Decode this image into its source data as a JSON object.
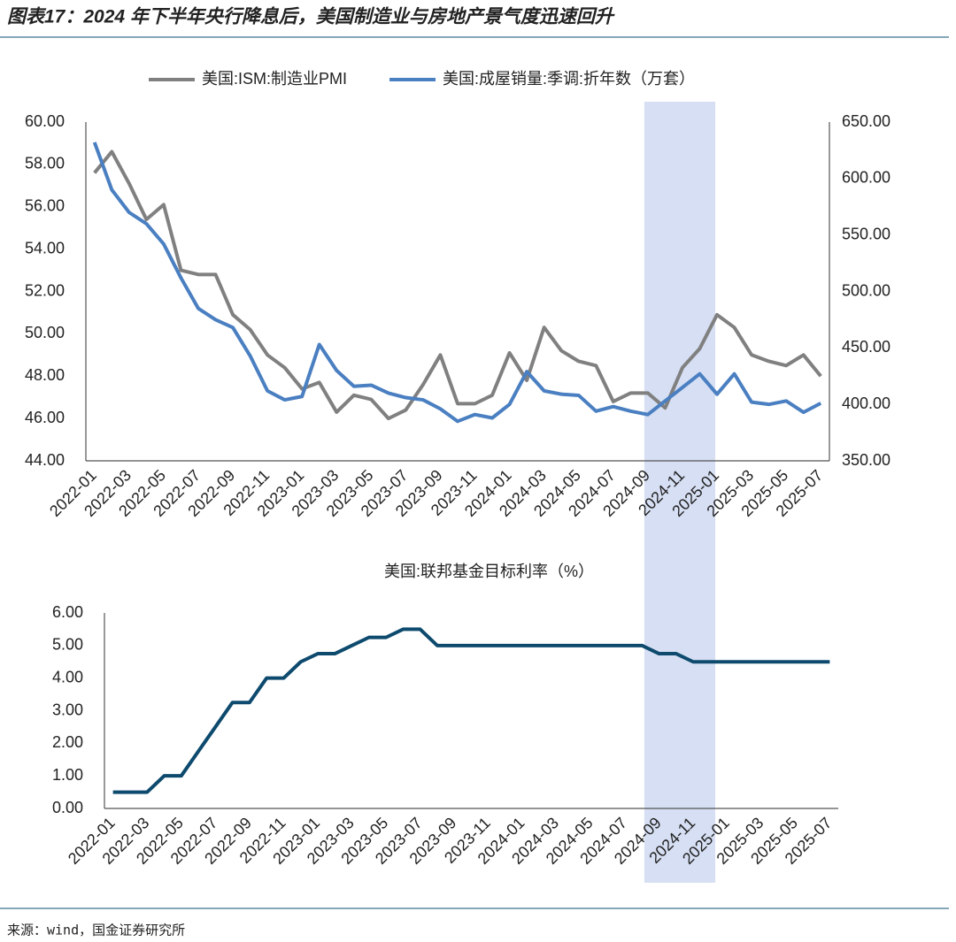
{
  "header": {
    "title": "图表17：2024 年下半年央行降息后，美国制造业与房地产景气度迅速回升"
  },
  "chart_data": [
    {
      "type": "line",
      "categories": [
        "2022-01",
        null,
        "2022-03",
        null,
        "2022-05",
        null,
        "2022-07",
        null,
        "2022-09",
        null,
        "2022-11",
        null,
        "2023-01",
        null,
        "2023-03",
        null,
        "2023-05",
        null,
        "2023-07",
        null,
        "2023-09",
        null,
        "2023-11",
        null,
        "2024-01",
        null,
        "2024-03",
        null,
        "2024-05",
        null,
        "2024-07",
        null,
        "2024-09",
        null,
        "2024-11",
        null,
        "2025-01",
        null,
        "2025-03",
        null,
        "2025-05",
        null,
        "2025-07"
      ],
      "series": [
        {
          "name": "美国:ISM:制造业PMI",
          "color": "#808080",
          "axis": "y",
          "values": [
            57.6,
            58.6,
            57.1,
            55.4,
            56.1,
            53.0,
            52.8,
            52.8,
            50.9,
            50.2,
            49.0,
            48.4,
            47.4,
            47.7,
            46.3,
            47.1,
            46.9,
            46.0,
            46.4,
            47.6,
            49.0,
            46.7,
            46.7,
            47.1,
            49.1,
            47.8,
            50.3,
            49.2,
            48.7,
            48.5,
            46.8,
            47.2,
            47.2,
            46.5,
            48.4,
            49.3,
            50.9,
            50.3,
            49.0,
            48.7,
            48.5,
            49.0,
            48.0
          ]
        },
        {
          "name": "美国:成屋销量:季调:折年数（万套）",
          "color": "#4a7fc1",
          "axis": "y2",
          "values": [
            632,
            590,
            570,
            560,
            542,
            512,
            485,
            475,
            468,
            443,
            412,
            404,
            407,
            453,
            430,
            416,
            417,
            410,
            406,
            404,
            396,
            385,
            391,
            388,
            400,
            429,
            412,
            409,
            408,
            394,
            398,
            394,
            391,
            403,
            415,
            427,
            409,
            427,
            402,
            400,
            403,
            393,
            401
          ]
        }
      ],
      "ylim": [
        44,
        60
      ],
      "yticks": [
        {
          "value": 44,
          "label": "44.00"
        },
        {
          "value": 46,
          "label": "46.00"
        },
        {
          "value": 48,
          "label": "48.00"
        },
        {
          "value": 50,
          "label": "50.00"
        },
        {
          "value": 52,
          "label": "52.00"
        },
        {
          "value": 54,
          "label": "54.00"
        },
        {
          "value": 56,
          "label": "56.00"
        },
        {
          "value": 58,
          "label": "58.00"
        },
        {
          "value": 60,
          "label": "60.00"
        }
      ],
      "y2lim": [
        350,
        650
      ],
      "y2ticks": [
        {
          "value": 350,
          "label": "350.00"
        },
        {
          "value": 400,
          "label": "400.00"
        },
        {
          "value": 450,
          "label": "450.00"
        },
        {
          "value": 500,
          "label": "500.00"
        },
        {
          "value": 550,
          "label": "550.00"
        },
        {
          "value": 600,
          "label": "600.00"
        },
        {
          "value": 650,
          "label": "650.00"
        }
      ],
      "legend": "top",
      "highlight": [
        "2024-09",
        "2025-01"
      ],
      "highlight_color": "#d6dff3"
    },
    {
      "type": "line",
      "title": "美国:联邦基金目标利率（%）",
      "categories": [
        "2022-01",
        null,
        "2022-03",
        null,
        "2022-05",
        null,
        "2022-07",
        null,
        "2022-09",
        null,
        "2022-11",
        null,
        "2023-01",
        null,
        "2023-03",
        null,
        "2023-05",
        null,
        "2023-07",
        null,
        "2023-09",
        null,
        "2023-11",
        null,
        "2024-01",
        null,
        "2024-03",
        null,
        "2024-05",
        null,
        "2024-07",
        null,
        "2024-09",
        null,
        "2024-11",
        null,
        "2025-01",
        null,
        "2025-03",
        null,
        "2025-05",
        null,
        "2025-07"
      ],
      "series": [
        {
          "color": "#0d4a6e",
          "values": [
            0.5,
            0.5,
            0.5,
            1.0,
            1.0,
            1.75,
            2.5,
            3.25,
            3.25,
            4.0,
            4.0,
            4.5,
            4.75,
            4.75,
            5.0,
            5.25,
            5.25,
            5.5,
            5.5,
            5.0,
            5.0,
            5.0,
            5.0,
            5.0,
            5.0,
            5.0,
            5.0,
            5.0,
            5.0,
            5.0,
            5.0,
            5.0,
            4.75,
            4.75,
            4.5,
            4.5,
            4.5,
            4.5,
            4.5,
            4.5,
            4.5,
            4.5,
            4.5
          ]
        }
      ],
      "ylim": [
        0,
        6
      ],
      "yticks": [
        {
          "value": 0,
          "label": "0.00"
        },
        {
          "value": 1,
          "label": "1.00"
        },
        {
          "value": 2,
          "label": "2.00"
        },
        {
          "value": 3,
          "label": "3.00"
        },
        {
          "value": 4,
          "label": "4.00"
        },
        {
          "value": 5,
          "label": "5.00"
        },
        {
          "value": 6,
          "label": "6.00"
        }
      ]
    }
  ],
  "footer": {
    "source": "来源：wind，国金证券研究所"
  }
}
